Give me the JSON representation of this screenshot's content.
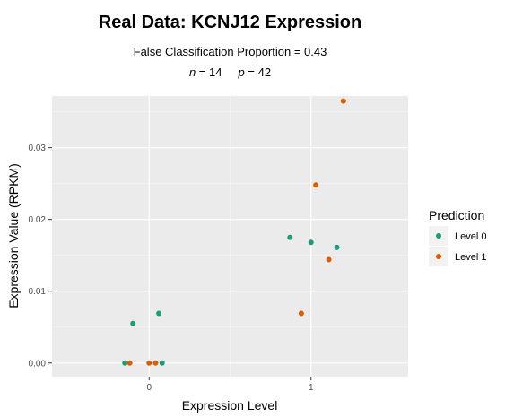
{
  "chart_data": {
    "type": "scatter",
    "title": "Real Data: KCNJ12 Expression",
    "subtitle": "False Classification Proportion = 0.43",
    "stats": {
      "n_label": "n",
      "n_value": "= 14",
      "p_label": "p",
      "p_value": "= 42"
    },
    "xlabel": "Expression Level",
    "ylabel": "Expression Value (RPKM)",
    "xlim": [
      -0.6,
      1.6
    ],
    "ylim": [
      -0.0019,
      0.0372
    ],
    "x_ticks": [
      0,
      1
    ],
    "x_tick_labels": [
      "0",
      "1"
    ],
    "y_ticks": [
      0.0,
      0.01,
      0.02,
      0.03
    ],
    "y_tick_labels": [
      "0.00",
      "0.01",
      "0.02",
      "0.03"
    ],
    "grid": true,
    "legend": {
      "title": "Prediction",
      "position": "right",
      "entries": [
        {
          "label": "Level 0",
          "color": "#1b9e77"
        },
        {
          "label": "Level 1",
          "color": "#d95f02"
        }
      ]
    },
    "series": [
      {
        "name": "Level 0",
        "color": "#1b9e77",
        "points": [
          {
            "x": -0.15,
            "y": 0.0
          },
          {
            "x": 0.08,
            "y": 0.0
          },
          {
            "x": -0.1,
            "y": 0.0055
          },
          {
            "x": 0.06,
            "y": 0.0069
          },
          {
            "x": 0.87,
            "y": 0.0175
          },
          {
            "x": 1.0,
            "y": 0.0168
          },
          {
            "x": 1.16,
            "y": 0.0161
          }
        ]
      },
      {
        "name": "Level 1",
        "color": "#d95f02",
        "points": [
          {
            "x": -0.12,
            "y": 0.0
          },
          {
            "x": 0.0,
            "y": 0.0
          },
          {
            "x": 0.04,
            "y": 0.0
          },
          {
            "x": 0.94,
            "y": 0.0069
          },
          {
            "x": 1.11,
            "y": 0.0144
          },
          {
            "x": 1.03,
            "y": 0.0248
          },
          {
            "x": 1.2,
            "y": 0.0365
          }
        ]
      }
    ]
  }
}
